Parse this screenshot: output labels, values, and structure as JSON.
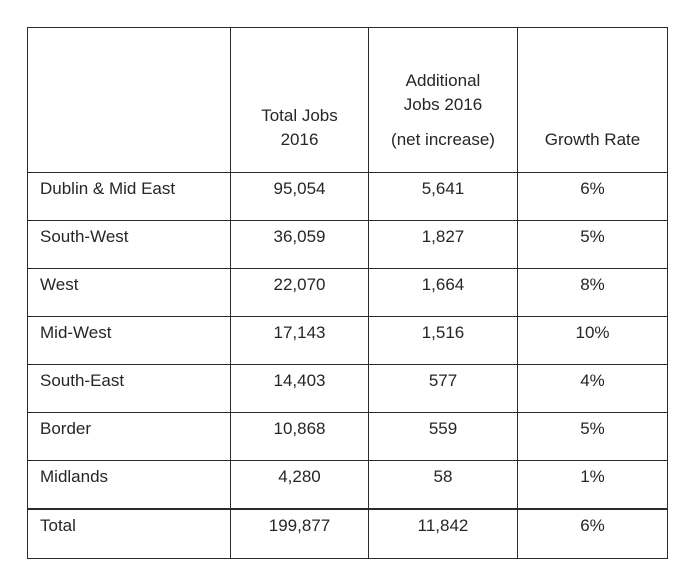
{
  "table": {
    "headers": {
      "region": "",
      "total_jobs": "Total Jobs 2016",
      "additional_jobs_line1": "Additional",
      "additional_jobs_line2": "Jobs 2016",
      "additional_jobs_note": "(net increase)",
      "growth_rate": "Growth Rate"
    },
    "rows": [
      {
        "region": "Dublin & Mid East",
        "total_jobs": "95,054",
        "additional_jobs": "5,641",
        "growth_rate": "6%"
      },
      {
        "region": "South-West",
        "total_jobs": "36,059",
        "additional_jobs": "1,827",
        "growth_rate": "5%"
      },
      {
        "region": "West",
        "total_jobs": "22,070",
        "additional_jobs": "1,664",
        "growth_rate": "8%"
      },
      {
        "region": "Mid-West",
        "total_jobs": "17,143",
        "additional_jobs": "1,516",
        "growth_rate": "10%"
      },
      {
        "region": "South-East",
        "total_jobs": "14,403",
        "additional_jobs": "577",
        "growth_rate": "4%"
      },
      {
        "region": "Border",
        "total_jobs": "10,868",
        "additional_jobs": "559",
        "growth_rate": "5%"
      },
      {
        "region": "Midlands",
        "total_jobs": "4,280",
        "additional_jobs": "58",
        "growth_rate": "1%"
      }
    ],
    "total": {
      "region": "Total",
      "total_jobs": "199,877",
      "additional_jobs": "11,842",
      "growth_rate": "6%"
    }
  },
  "colors": {
    "border": "#2b2b2b",
    "text": "#262626",
    "background": "#ffffff"
  }
}
